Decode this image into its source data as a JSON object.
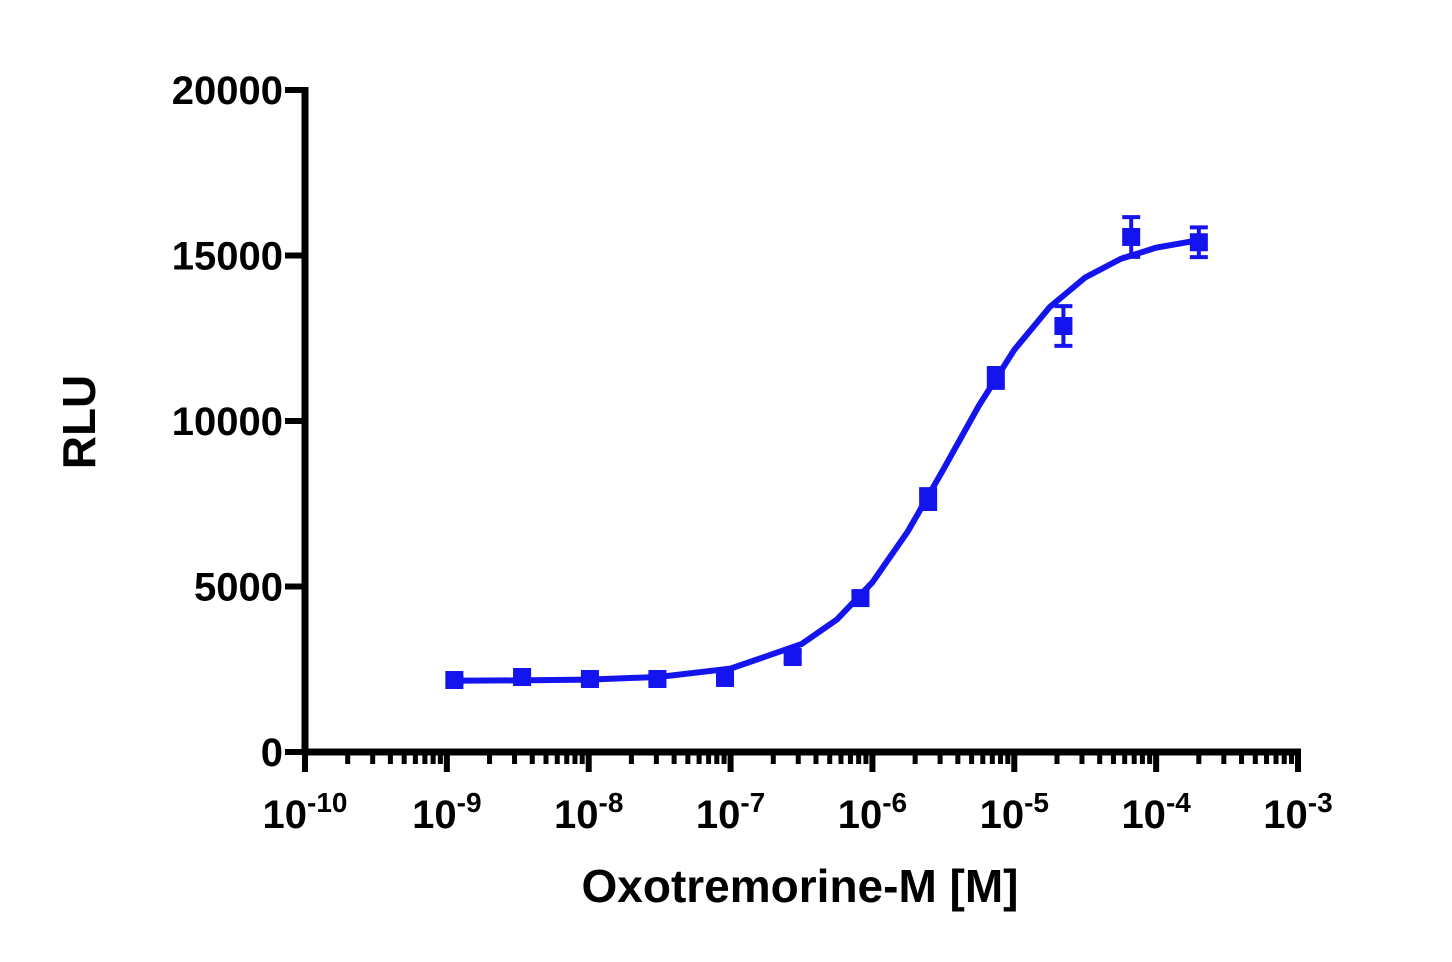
{
  "chart_data": {
    "type": "scatter",
    "x_label": "Oxotremorine-M [M]",
    "y_label": "RLU",
    "log_x": true,
    "minor_ticks": true,
    "xlim": [
      1e-10,
      0.001
    ],
    "ylim": [
      0,
      20000
    ],
    "xticks": [
      {
        "value": 1e-10,
        "label": "10",
        "exponent": "-10"
      },
      {
        "value": 1e-09,
        "label": "10",
        "exponent": "-9"
      },
      {
        "value": 1e-08,
        "label": "10",
        "exponent": "-8"
      },
      {
        "value": 1e-07,
        "label": "10",
        "exponent": "-7"
      },
      {
        "value": 1e-06,
        "label": "10",
        "exponent": "-6"
      },
      {
        "value": 1e-05,
        "label": "10",
        "exponent": "-5"
      },
      {
        "value": 0.0001,
        "label": "10",
        "exponent": "-4"
      },
      {
        "value": 0.001,
        "label": "10",
        "exponent": "-3"
      }
    ],
    "yticks": [
      0,
      5000,
      10000,
      15000,
      20000
    ],
    "color": "#1414ee",
    "x": [
      1.13e-09,
      3.39e-09,
      1.02e-08,
      3.05e-08,
      9.14e-08,
      2.74e-07,
      8.23e-07,
      2.47e-06,
      7.41e-06,
      2.22e-05,
      6.67e-05,
      0.0002
    ],
    "values": [
      2175,
      2266,
      2205,
      2205,
      2236,
      2870,
      4650,
      7640,
      11300,
      12870,
      15560,
      15400
    ],
    "errors": [
      100,
      100,
      100,
      100,
      100,
      150,
      150,
      300,
      300,
      600,
      600,
      450
    ],
    "curve": {
      "x": [
        1e-09,
        3.162e-09,
        1e-08,
        3.162e-08,
        1e-07,
        3.162e-07,
        5.623e-07,
        1e-06,
        1.778e-06,
        3.162e-06,
        5.623e-06,
        1e-05,
        1.778e-05,
        3.162e-05,
        5.623e-05,
        0.0001,
        0.0002
      ],
      "values": [
        2154,
        2162,
        2188,
        2270,
        2521,
        3260,
        4004,
        5128,
        6667,
        8538,
        10458,
        12150,
        13442,
        14335,
        14897,
        15235,
        15463
      ]
    }
  }
}
